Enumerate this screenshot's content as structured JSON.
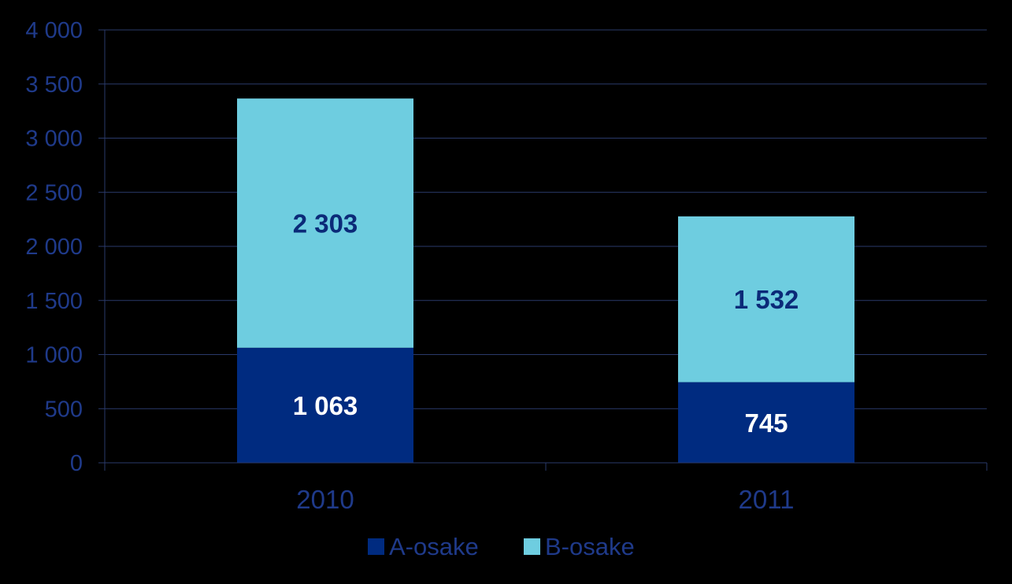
{
  "chart_data": {
    "type": "bar",
    "stacked": true,
    "categories": [
      "2010",
      "2011"
    ],
    "series": [
      {
        "name": "A-osake",
        "values": [
          1063,
          745
        ],
        "labels": [
          "1 063",
          "745"
        ],
        "color": "#002b80",
        "label_color": "#ffffff"
      },
      {
        "name": "B-osake",
        "values": [
          2303,
          1532
        ],
        "labels": [
          "2 303",
          "1 532"
        ],
        "color": "#6ecde0",
        "label_color": "#0b2a78"
      }
    ],
    "ylim": [
      0,
      4000
    ],
    "yticks": [
      0,
      500,
      1000,
      1500,
      2000,
      2500,
      3000,
      3500,
      4000
    ],
    "ytick_labels": [
      "0",
      "500",
      "1 000",
      "1 500",
      "2 000",
      "2 500",
      "3 000",
      "3 500",
      "4 000"
    ],
    "grid": true,
    "legend": "bottom",
    "background": "#000000",
    "axis_text_color": "#1f3a8a",
    "grid_color": "#2a3a6a"
  }
}
